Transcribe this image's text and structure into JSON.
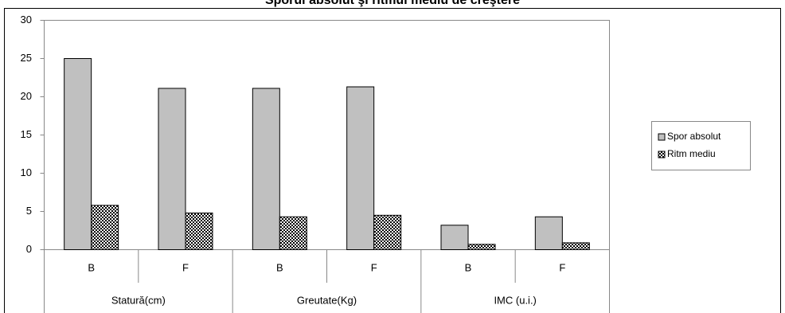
{
  "chart_data": {
    "type": "bar",
    "title": "Sporul absolut şi ritmul mediu de creştere",
    "categories": [
      "B",
      "F",
      "B",
      "F",
      "B",
      "F"
    ],
    "groups": [
      "Statură(cm)",
      "Greutate(Kg)",
      "IMC (u.i.)"
    ],
    "series": [
      {
        "name": "Spor absolut",
        "color": "#c0c0c0",
        "values": [
          25,
          21.1,
          21.1,
          21.3,
          3.2,
          4.3
        ]
      },
      {
        "name": "Ritm mediu",
        "color": "checker",
        "values": [
          5.8,
          4.8,
          4.3,
          4.5,
          0.7,
          0.9
        ]
      }
    ],
    "ylim": [
      0,
      30
    ],
    "yticks": [
      0,
      5,
      10,
      15,
      20,
      25,
      30
    ],
    "grid": false,
    "legend": "right"
  }
}
